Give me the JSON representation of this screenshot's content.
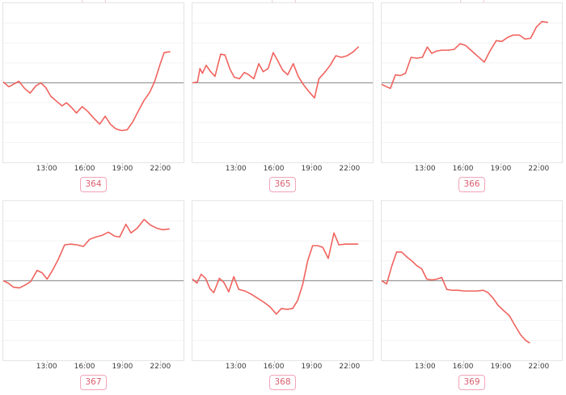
{
  "page": {
    "background": "#ffffff",
    "layout": "2x3-grid-of-sparkline-charts"
  },
  "colors": {
    "line": "#f0625d",
    "zero_line": "#9a9a9a",
    "grid_line": "#f3f3f3",
    "box_border": "#e4e4e4",
    "tick_text": "#3b3b3b",
    "tick_mark": "#c9c9c9",
    "badge_border": "#f3a4b8",
    "badge_text": "#da5f6e"
  },
  "axis": {
    "x_range": [
      9.5,
      23.9
    ],
    "tick_hours": [
      13,
      16,
      19,
      22
    ],
    "tick_labels": [
      "13:00",
      "16:00",
      "19:00",
      "22:00"
    ],
    "ylim": [
      -1,
      1
    ],
    "zero_line_at": 0,
    "grid_values": [
      0.75,
      0.5,
      0.25,
      -0.25,
      -0.5,
      -0.75
    ]
  },
  "chart_data": [
    {
      "type": "line",
      "label": "364",
      "xlabel_ticks": [
        "13:00",
        "16:00",
        "19:00",
        "22:00"
      ],
      "ylim": [
        -1,
        1
      ],
      "zero_line": true,
      "points": [
        [
          9.5,
          0.01
        ],
        [
          9.95,
          -0.05
        ],
        [
          10.3,
          -0.02
        ],
        [
          10.75,
          0.02
        ],
        [
          11.2,
          -0.07
        ],
        [
          11.65,
          -0.13
        ],
        [
          12.1,
          -0.04
        ],
        [
          12.5,
          0.0
        ],
        [
          12.9,
          -0.06
        ],
        [
          13.3,
          -0.17
        ],
        [
          13.75,
          -0.23
        ],
        [
          14.2,
          -0.29
        ],
        [
          14.55,
          -0.25
        ],
        [
          14.95,
          -0.31
        ],
        [
          15.35,
          -0.38
        ],
        [
          15.8,
          -0.3
        ],
        [
          16.25,
          -0.36
        ],
        [
          16.7,
          -0.44
        ],
        [
          17.2,
          -0.52
        ],
        [
          17.65,
          -0.42
        ],
        [
          18.05,
          -0.52
        ],
        [
          18.5,
          -0.58
        ],
        [
          18.95,
          -0.6
        ],
        [
          19.4,
          -0.59
        ],
        [
          19.85,
          -0.49
        ],
        [
          20.3,
          -0.35
        ],
        [
          20.75,
          -0.22
        ],
        [
          21.2,
          -0.12
        ],
        [
          21.6,
          0.02
        ],
        [
          22.0,
          0.22
        ],
        [
          22.35,
          0.38
        ],
        [
          22.8,
          0.39
        ]
      ]
    },
    {
      "type": "line",
      "label": "365",
      "xlabel_ticks": [
        "13:00",
        "16:00",
        "19:00",
        "22:00"
      ],
      "ylim": [
        -1,
        1
      ],
      "zero_line": true,
      "points": [
        [
          9.5,
          0.0
        ],
        [
          9.9,
          0.01
        ],
        [
          10.1,
          0.18
        ],
        [
          10.3,
          0.12
        ],
        [
          10.6,
          0.22
        ],
        [
          10.95,
          0.14
        ],
        [
          11.3,
          0.08
        ],
        [
          11.75,
          0.36
        ],
        [
          12.1,
          0.35
        ],
        [
          12.5,
          0.17
        ],
        [
          12.85,
          0.07
        ],
        [
          13.25,
          0.05
        ],
        [
          13.65,
          0.13
        ],
        [
          14.0,
          0.1
        ],
        [
          14.4,
          0.05
        ],
        [
          14.8,
          0.24
        ],
        [
          15.15,
          0.14
        ],
        [
          15.55,
          0.18
        ],
        [
          15.95,
          0.38
        ],
        [
          16.3,
          0.28
        ],
        [
          16.7,
          0.16
        ],
        [
          17.1,
          0.1
        ],
        [
          17.55,
          0.24
        ],
        [
          17.95,
          0.08
        ],
        [
          18.35,
          -0.02
        ],
        [
          18.75,
          -0.1
        ],
        [
          19.25,
          -0.19
        ],
        [
          19.6,
          0.05
        ],
        [
          20.0,
          0.12
        ],
        [
          20.5,
          0.22
        ],
        [
          20.95,
          0.34
        ],
        [
          21.4,
          0.32
        ],
        [
          21.85,
          0.34
        ],
        [
          22.35,
          0.39
        ],
        [
          22.75,
          0.45
        ]
      ]
    },
    {
      "type": "line",
      "label": "366",
      "xlabel_ticks": [
        "13:00",
        "16:00",
        "19:00",
        "22:00"
      ],
      "ylim": [
        -1,
        1
      ],
      "zero_line": true,
      "points": [
        [
          9.5,
          -0.02
        ],
        [
          9.9,
          -0.05
        ],
        [
          10.2,
          -0.07
        ],
        [
          10.6,
          0.1
        ],
        [
          11.0,
          0.09
        ],
        [
          11.4,
          0.12
        ],
        [
          11.85,
          0.32
        ],
        [
          12.3,
          0.31
        ],
        [
          12.75,
          0.32
        ],
        [
          13.15,
          0.45
        ],
        [
          13.5,
          0.37
        ],
        [
          13.9,
          0.4
        ],
        [
          14.3,
          0.41
        ],
        [
          14.8,
          0.41
        ],
        [
          15.3,
          0.42
        ],
        [
          15.75,
          0.49
        ],
        [
          16.2,
          0.47
        ],
        [
          16.7,
          0.4
        ],
        [
          17.2,
          0.33
        ],
        [
          17.7,
          0.26
        ],
        [
          18.15,
          0.4
        ],
        [
          18.65,
          0.53
        ],
        [
          19.1,
          0.52
        ],
        [
          19.55,
          0.57
        ],
        [
          20.0,
          0.6
        ],
        [
          20.5,
          0.6
        ],
        [
          20.95,
          0.55
        ],
        [
          21.4,
          0.56
        ],
        [
          21.85,
          0.7
        ],
        [
          22.3,
          0.77
        ],
        [
          22.75,
          0.76
        ]
      ]
    },
    {
      "type": "line",
      "label": "367",
      "xlabel_ticks": [
        "13:00",
        "16:00",
        "19:00",
        "22:00"
      ],
      "ylim": [
        -1,
        1
      ],
      "zero_line": true,
      "points": [
        [
          9.5,
          0.0
        ],
        [
          9.9,
          -0.03
        ],
        [
          10.3,
          -0.08
        ],
        [
          10.8,
          -0.09
        ],
        [
          11.3,
          -0.05
        ],
        [
          11.7,
          -0.01
        ],
        [
          12.2,
          0.13
        ],
        [
          12.6,
          0.1
        ],
        [
          13.0,
          0.02
        ],
        [
          13.4,
          0.12
        ],
        [
          13.9,
          0.27
        ],
        [
          14.4,
          0.45
        ],
        [
          14.9,
          0.46
        ],
        [
          15.4,
          0.45
        ],
        [
          15.9,
          0.43
        ],
        [
          16.4,
          0.52
        ],
        [
          16.9,
          0.55
        ],
        [
          17.4,
          0.57
        ],
        [
          17.9,
          0.61
        ],
        [
          18.4,
          0.56
        ],
        [
          18.8,
          0.55
        ],
        [
          19.3,
          0.71
        ],
        [
          19.7,
          0.6
        ],
        [
          20.2,
          0.66
        ],
        [
          20.75,
          0.77
        ],
        [
          21.25,
          0.7
        ],
        [
          21.75,
          0.66
        ],
        [
          22.25,
          0.64
        ],
        [
          22.75,
          0.65
        ]
      ]
    },
    {
      "type": "line",
      "label": "368",
      "xlabel_ticks": [
        "13:00",
        "16:00",
        "19:00",
        "22:00"
      ],
      "ylim": [
        -1,
        1
      ],
      "zero_line": true,
      "points": [
        [
          9.5,
          0.02
        ],
        [
          9.85,
          -0.03
        ],
        [
          10.2,
          0.08
        ],
        [
          10.55,
          0.03
        ],
        [
          10.9,
          -0.1
        ],
        [
          11.2,
          -0.15
        ],
        [
          11.65,
          0.03
        ],
        [
          12.0,
          -0.02
        ],
        [
          12.4,
          -0.14
        ],
        [
          12.8,
          0.05
        ],
        [
          13.2,
          -0.11
        ],
        [
          13.7,
          -0.13
        ],
        [
          14.2,
          -0.17
        ],
        [
          14.7,
          -0.22
        ],
        [
          15.2,
          -0.27
        ],
        [
          15.7,
          -0.33
        ],
        [
          16.2,
          -0.42
        ],
        [
          16.6,
          -0.35
        ],
        [
          17.05,
          -0.36
        ],
        [
          17.5,
          -0.35
        ],
        [
          17.9,
          -0.25
        ],
        [
          18.3,
          -0.05
        ],
        [
          18.7,
          0.25
        ],
        [
          19.1,
          0.44
        ],
        [
          19.5,
          0.44
        ],
        [
          19.9,
          0.42
        ],
        [
          20.35,
          0.28
        ],
        [
          20.8,
          0.6
        ],
        [
          21.2,
          0.45
        ],
        [
          21.7,
          0.46
        ],
        [
          22.2,
          0.46
        ],
        [
          22.7,
          0.46
        ]
      ]
    },
    {
      "type": "line",
      "label": "369",
      "xlabel_ticks": [
        "13:00",
        "16:00",
        "19:00",
        "22:00"
      ],
      "ylim": [
        -1,
        1
      ],
      "zero_line": true,
      "points": [
        [
          9.5,
          0.0
        ],
        [
          9.9,
          -0.04
        ],
        [
          10.3,
          0.18
        ],
        [
          10.7,
          0.36
        ],
        [
          11.1,
          0.36
        ],
        [
          11.5,
          0.3
        ],
        [
          11.9,
          0.25
        ],
        [
          12.3,
          0.19
        ],
        [
          12.7,
          0.15
        ],
        [
          13.1,
          0.02
        ],
        [
          13.5,
          0.01
        ],
        [
          13.9,
          0.02
        ],
        [
          14.3,
          0.04
        ],
        [
          14.7,
          -0.11
        ],
        [
          15.1,
          -0.12
        ],
        [
          15.6,
          -0.12
        ],
        [
          16.1,
          -0.13
        ],
        [
          16.6,
          -0.13
        ],
        [
          17.1,
          -0.13
        ],
        [
          17.6,
          -0.12
        ],
        [
          18.0,
          -0.15
        ],
        [
          18.4,
          -0.22
        ],
        [
          18.8,
          -0.31
        ],
        [
          19.2,
          -0.37
        ],
        [
          19.7,
          -0.44
        ],
        [
          20.1,
          -0.55
        ],
        [
          20.6,
          -0.68
        ],
        [
          21.0,
          -0.75
        ],
        [
          21.3,
          -0.78
        ]
      ]
    }
  ]
}
